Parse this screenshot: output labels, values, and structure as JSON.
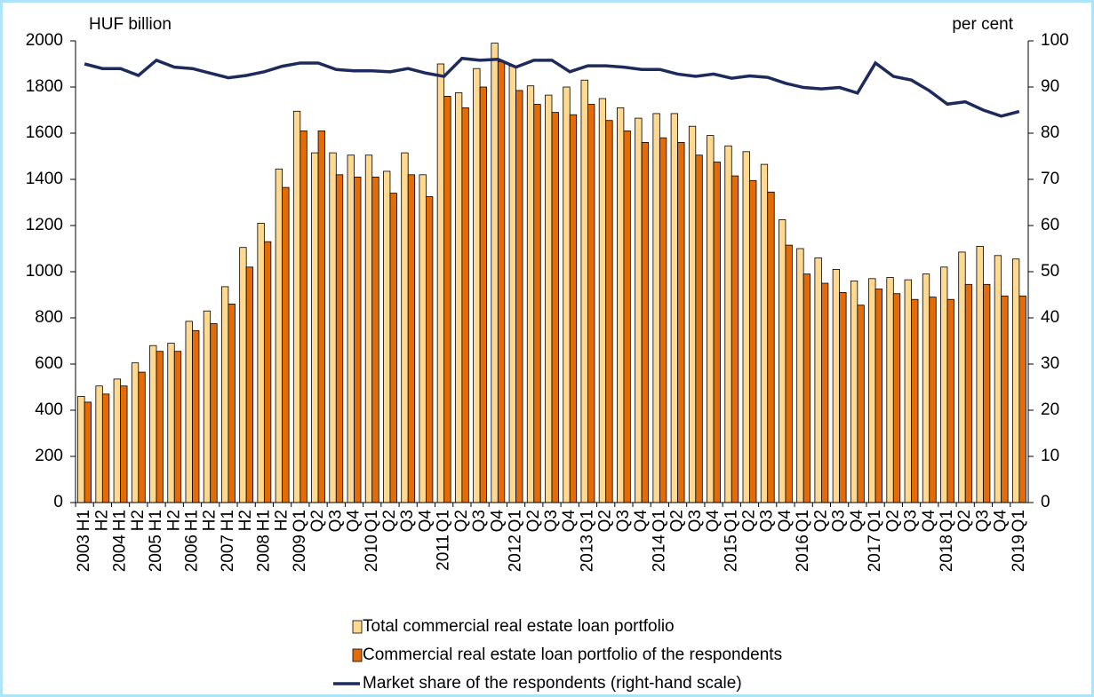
{
  "chart_data": {
    "type": "bar",
    "y_label": "HUF billion",
    "y2_label": "per cent",
    "categories": [
      "H1",
      "H2",
      "H1",
      "H2",
      "H1",
      "H2",
      "H1",
      "H2",
      "H1",
      "H2",
      "H1",
      "H2",
      "Q1",
      "Q2",
      "Q3",
      "Q4",
      "Q1",
      "Q2",
      "Q3",
      "Q4",
      "Q1",
      "Q2",
      "Q3",
      "Q4",
      "Q1",
      "Q2",
      "Q3",
      "Q4",
      "Q1",
      "Q2",
      "Q3",
      "Q4",
      "Q1",
      "Q2",
      "Q3",
      "Q4",
      "Q1",
      "Q2",
      "Q3",
      "Q4",
      "Q1",
      "Q2",
      "Q3",
      "Q4",
      "Q1",
      "Q2",
      "Q3",
      "Q4",
      "Q1",
      "Q2",
      "Q3",
      "Q4",
      "Q1"
    ],
    "category_years": [
      "2003",
      null,
      "2004",
      null,
      "2005",
      null,
      "2006",
      null,
      "2007",
      null,
      "2008",
      null,
      "2009",
      null,
      null,
      null,
      "2010",
      null,
      null,
      null,
      "2011",
      null,
      null,
      null,
      "2012",
      null,
      null,
      null,
      "2013",
      null,
      null,
      null,
      "2014",
      null,
      null,
      null,
      "2015",
      null,
      null,
      null,
      "2016",
      null,
      null,
      null,
      "2017",
      null,
      null,
      null,
      "2018",
      null,
      null,
      null,
      "2019"
    ],
    "series": [
      {
        "name": "Total commercial real estate loan portfolio",
        "type": "bar",
        "color": "#ffd98f",
        "values": [
          460,
          505,
          535,
          605,
          680,
          690,
          785,
          830,
          935,
          1105,
          1210,
          1445,
          1695,
          1515,
          1515,
          1505,
          1505,
          1435,
          1515,
          1420,
          1900,
          1775,
          1880,
          1990,
          1890,
          1805,
          1765,
          1800,
          1830,
          1750,
          1710,
          1665,
          1685,
          1685,
          1630,
          1590,
          1545,
          1520,
          1465,
          1225,
          1100,
          1060,
          1010,
          960,
          970,
          975,
          965,
          990,
          1020,
          1085,
          1110,
          1070,
          1055
        ]
      },
      {
        "name": "Commercial real estate loan portfolio of the respondents",
        "type": "bar",
        "color": "#e36c09",
        "values": [
          435,
          470,
          505,
          565,
          655,
          655,
          745,
          775,
          860,
          1020,
          1130,
          1365,
          1610,
          1610,
          1420,
          1410,
          1410,
          1340,
          1420,
          1325,
          1760,
          1710,
          1800,
          1910,
          1785,
          1725,
          1690,
          1680,
          1725,
          1655,
          1610,
          1560,
          1580,
          1560,
          1505,
          1475,
          1415,
          1395,
          1345,
          1115,
          990,
          950,
          910,
          855,
          925,
          905,
          880,
          890,
          880,
          945,
          945,
          895,
          895
        ]
      },
      {
        "name": "Market share of the respondents (right-hand scale)",
        "type": "line",
        "axis": "y2",
        "color": "#1f2a5c",
        "values": [
          95,
          94,
          94,
          92.5,
          95.8,
          94.3,
          94,
          93,
          92,
          92.5,
          93.3,
          94.5,
          95.2,
          95.2,
          93.8,
          93.5,
          93.5,
          93.3,
          94,
          93,
          92.3,
          96.2,
          95.8,
          96,
          94.3,
          95.8,
          95.8,
          93.3,
          94.6,
          94.6,
          94.3,
          93.8,
          93.8,
          92.8,
          92.3,
          92.8,
          91.9,
          92.4,
          92.1,
          90.8,
          89.9,
          89.6,
          89.9,
          88.7,
          95.2,
          92.3,
          91.5,
          89.2,
          86.3,
          86.8,
          85,
          83.7,
          84.7
        ]
      }
    ],
    "ylim": [
      0,
      2000
    ],
    "yticks": [
      0,
      200,
      400,
      600,
      800,
      1000,
      1200,
      1400,
      1600,
      1800,
      2000
    ],
    "y2lim": [
      0,
      100
    ],
    "y2ticks": [
      0,
      10,
      20,
      30,
      40,
      50,
      60,
      70,
      80,
      90,
      100
    ]
  }
}
